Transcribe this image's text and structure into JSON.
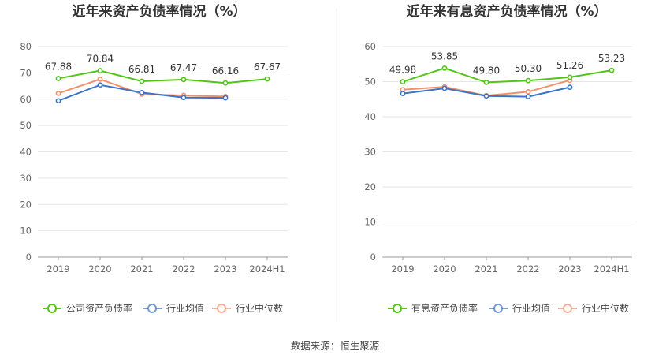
{
  "chart_data": [
    {
      "type": "line",
      "title": "近年来资产负债率情况（%）",
      "categories": [
        "2019",
        "2020",
        "2021",
        "2022",
        "2023",
        "2024H1"
      ],
      "ylim": [
        0,
        80
      ],
      "yticks": [
        "0",
        "10",
        "20",
        "30",
        "40",
        "50",
        "60",
        "70",
        "80"
      ],
      "grid": true,
      "legend_position": "bottom",
      "series": [
        {
          "name": "公司资产负债率",
          "color": "#52c41a",
          "values": [
            67.88,
            70.84,
            66.81,
            67.47,
            66.16,
            67.67
          ],
          "labels": [
            "67.88",
            "70.84",
            "66.81",
            "67.47",
            "66.16",
            "67.67"
          ]
        },
        {
          "name": "行业均值",
          "color": "#3b74c8",
          "values": [
            59.4,
            65.4,
            62.5,
            60.6,
            60.5,
            null
          ]
        },
        {
          "name": "行业中位数",
          "color": "#f0906c",
          "values": [
            62.2,
            67.6,
            61.9,
            61.4,
            61.0,
            null
          ]
        }
      ]
    },
    {
      "type": "line",
      "title": "近年来有息资产负债率情况（%）",
      "categories": [
        "2019",
        "2020",
        "2021",
        "2022",
        "2023",
        "2024H1"
      ],
      "ylim": [
        0,
        60
      ],
      "yticks": [
        "0",
        "10",
        "20",
        "30",
        "40",
        "50",
        "60"
      ],
      "grid": true,
      "legend_position": "bottom",
      "series": [
        {
          "name": "有息资产负债率",
          "color": "#52c41a",
          "values": [
            49.98,
            53.85,
            49.8,
            50.3,
            51.26,
            53.23
          ],
          "labels": [
            "49.98",
            "53.85",
            "49.80",
            "50.30",
            "51.26",
            "53.23"
          ]
        },
        {
          "name": "行业均值",
          "color": "#3b74c8",
          "values": [
            46.6,
            48.1,
            45.9,
            45.7,
            48.4,
            null
          ]
        },
        {
          "name": "行业中位数",
          "color": "#f0906c",
          "values": [
            47.7,
            48.5,
            46.0,
            47.1,
            50.4,
            null
          ]
        }
      ]
    }
  ],
  "source": "数据来源：恒生聚源"
}
